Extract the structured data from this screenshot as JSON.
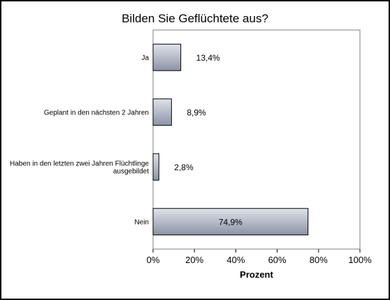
{
  "chart_data": {
    "type": "bar",
    "orientation": "horizontal",
    "title": "Bilden Sie Geflüchtete aus?",
    "xlabel": "Prozent",
    "ylabel": "",
    "xlim": [
      0,
      100
    ],
    "x_ticks": [
      "0%",
      "20%",
      "40%",
      "60%",
      "80%",
      "100%"
    ],
    "categories": [
      [
        "Ja"
      ],
      [
        "Geplant in den nächsten 2 Jahren"
      ],
      [
        "Haben in den letzten zwei Jahren Flüchtlinge",
        "ausgebildet"
      ],
      [
        "Nein"
      ]
    ],
    "values": [
      13.4,
      8.9,
      2.8,
      74.9
    ],
    "value_labels": [
      "13,4%",
      "8,9%",
      "2,8%",
      "74,9%"
    ],
    "grid": false,
    "legend": "none",
    "colors": {
      "bar_light": "#dfe3ea",
      "bar_dark": "#8c93a6",
      "bar_stroke": "#000000",
      "plot_border": "#808080"
    }
  }
}
